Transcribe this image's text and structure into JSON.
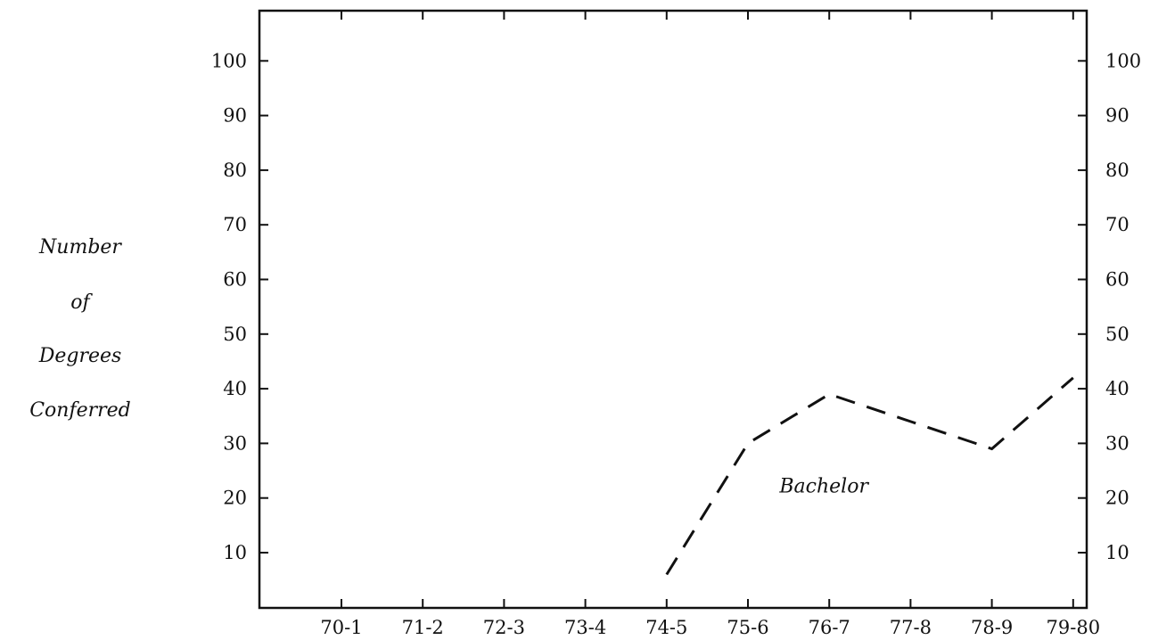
{
  "chart_data": {
    "type": "line",
    "title": "",
    "xlabel": "",
    "ylabel": [
      "Number",
      "of",
      "Degrees",
      "Conferred"
    ],
    "categories": [
      "70-1",
      "71-2",
      "72-3",
      "73-4",
      "74-5",
      "75-6",
      "76-7",
      "77-8",
      "78-9",
      "79-80"
    ],
    "yticks": [
      10,
      20,
      30,
      40,
      50,
      60,
      70,
      80,
      90,
      100
    ],
    "ylim": [
      0,
      110
    ],
    "grid": false,
    "y_axis_on_both_sides": true,
    "series": [
      {
        "name": "Bachelor",
        "line_style": "dashed",
        "color": "#111111",
        "x": [
          "74-5",
          "75-6",
          "76-7",
          "77-8",
          "78-9",
          "79-80"
        ],
        "values": [
          6,
          30,
          39,
          34,
          29,
          42
        ]
      }
    ],
    "annotations": [
      {
        "text": "Bachelor",
        "x": "76-7",
        "y": 22
      }
    ]
  }
}
